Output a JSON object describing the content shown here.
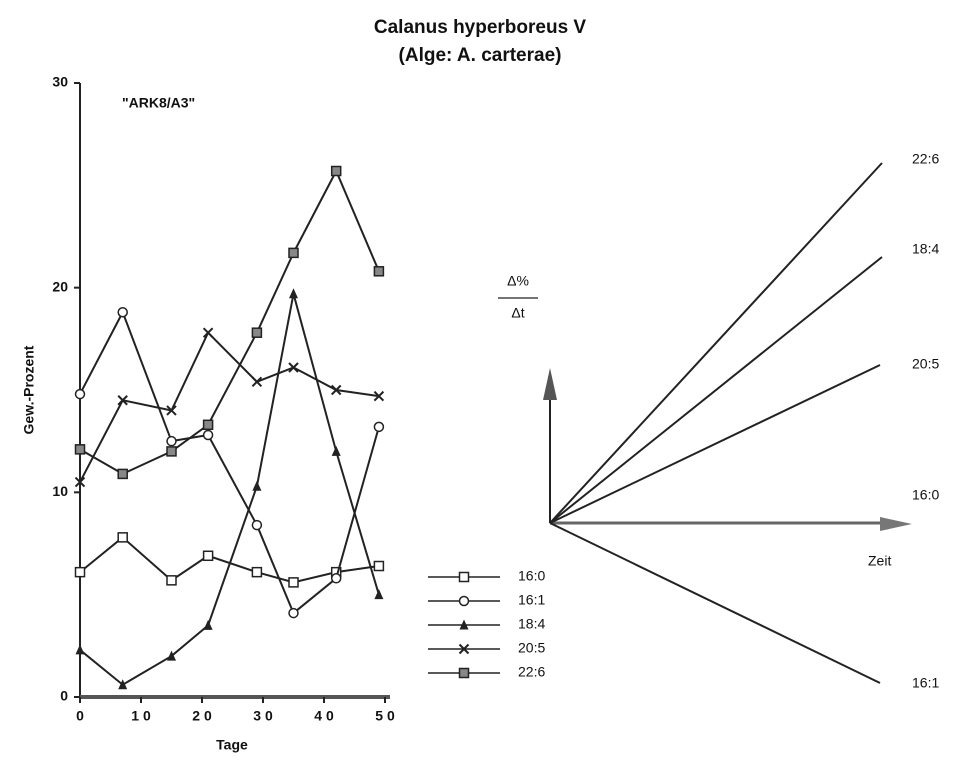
{
  "chart_data": [
    {
      "type": "line",
      "title": "Calanus hyperboreus V",
      "subtitle": "(Alge: A. carterae)",
      "annotation": "\"ARK8/A3\"",
      "x_label": "Tage",
      "y_label": "Gew.-Prozent",
      "x": [
        0,
        7,
        15,
        21,
        29,
        35,
        42,
        49
      ],
      "xlim": [
        0,
        50
      ],
      "xticks": [
        0,
        {
          "value": 10,
          "label": "1 0"
        },
        {
          "value": 20,
          "label": "2 0"
        },
        {
          "value": 30,
          "label": "3 0"
        },
        {
          "value": 40,
          "label": "4 0"
        },
        {
          "value": 50,
          "label": "5 0"
        }
      ],
      "ylim": [
        0,
        30
      ],
      "yticks": [
        0,
        10,
        20,
        30
      ],
      "series": [
        {
          "name": "16:0",
          "color": "#222222",
          "marker": "open-square",
          "values": [
            6.1,
            7.8,
            5.7,
            6.9,
            6.1,
            5.6,
            6.1,
            6.4
          ]
        },
        {
          "name": "16:1",
          "color": "#222222",
          "marker": "open-circle",
          "values": [
            14.8,
            18.8,
            12.5,
            12.8,
            8.4,
            4.1,
            5.8,
            13.2
          ]
        },
        {
          "name": "18:4",
          "color": "#222222",
          "marker": "filled-triangle",
          "values": [
            2.3,
            0.6,
            2.0,
            3.5,
            10.3,
            19.7,
            12.0,
            5.0
          ]
        },
        {
          "name": "20:5",
          "color": "#222222",
          "marker": "cross",
          "values": [
            10.5,
            14.5,
            14.0,
            17.8,
            15.4,
            16.1,
            15.0,
            14.7
          ]
        },
        {
          "name": "22:6",
          "color": "#222222",
          "marker": "shaded-square",
          "values": [
            12.1,
            10.9,
            12.0,
            13.3,
            17.8,
            21.7,
            25.7,
            20.8
          ]
        }
      ]
    },
    {
      "type": "diagram",
      "y_label_top": "Δ%",
      "y_label_bottom": "Δt",
      "x_label": "Zeit",
      "line_labels": [
        "22:6",
        "18:4",
        "20:5",
        "16:0",
        "16:1"
      ]
    }
  ]
}
